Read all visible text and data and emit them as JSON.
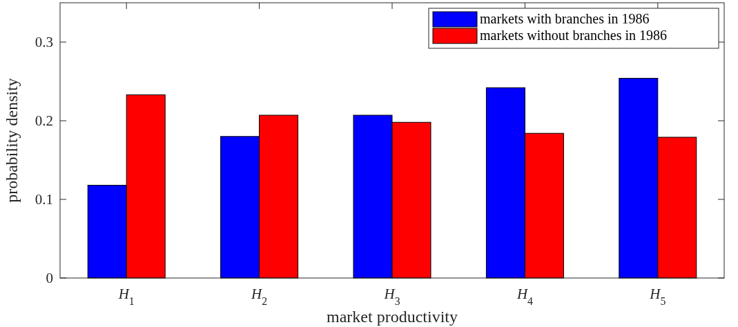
{
  "chart_data": {
    "type": "bar",
    "xlabel": "market productivity",
    "ylabel": "probability density",
    "categories": [
      "H$_{1}$",
      "H$_{2}$",
      "H$_{3}$",
      "H$_{4}$",
      "H$_{5}$"
    ],
    "series": [
      {
        "name": "markets with branches in 1986",
        "color": "#0000ff",
        "values": [
          0.118,
          0.18,
          0.207,
          0.242,
          0.254
        ]
      },
      {
        "name": "markets without branches in 1986",
        "color": "#ff0000",
        "values": [
          0.233,
          0.207,
          0.198,
          0.184,
          0.179
        ]
      }
    ],
    "ylim": [
      0,
      0.35
    ],
    "yticks": [
      0,
      0.1,
      0.2,
      0.3
    ],
    "legend": "top right",
    "grid": false
  }
}
